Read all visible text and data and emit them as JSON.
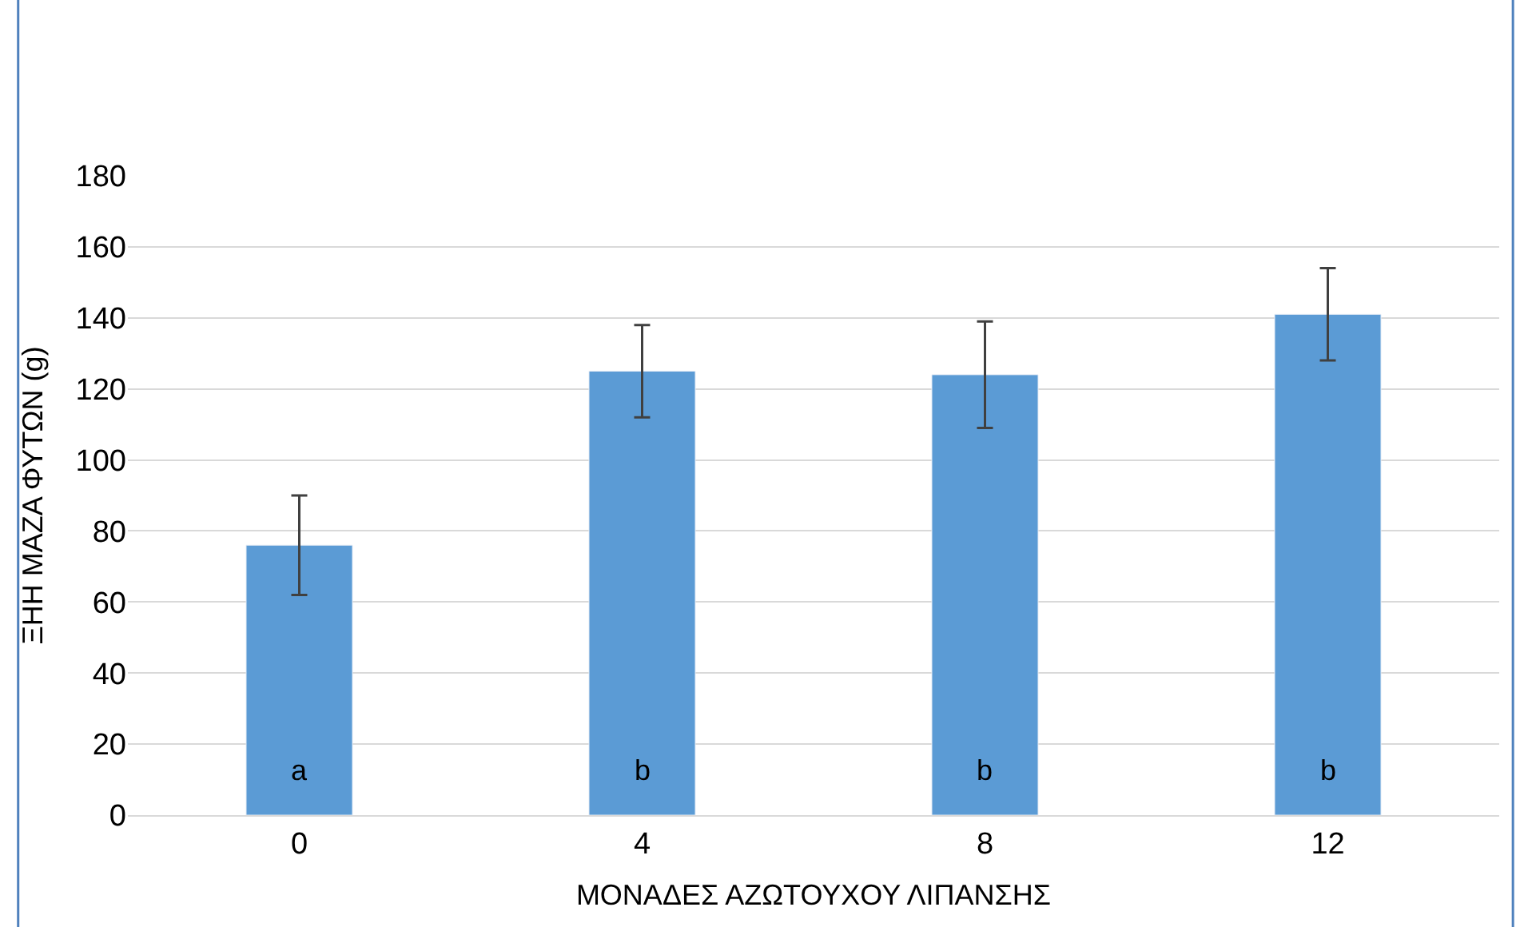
{
  "chart_data": {
    "type": "bar",
    "xlabel": "ΜΟΝΑΔΕΣ ΑΖΩΤΟΥΧΟΥ ΛΙΠΑΝΣΗΣ",
    "ylabel": "ΞΗΗ ΜΑΖΑ ΦΥΤΩΝ (g)",
    "categories": [
      "0",
      "4",
      "8",
      "12"
    ],
    "values": [
      76,
      125,
      124,
      141
    ],
    "errors": [
      14,
      13,
      15,
      13
    ],
    "color": "#5b9bd5",
    "ylim": [
      0,
      180
    ],
    "yticks": [
      0,
      20,
      40,
      60,
      80,
      100,
      120,
      140,
      160,
      180
    ],
    "grid": "y",
    "annotations": [
      "a",
      "b",
      "b",
      "b"
    ]
  }
}
